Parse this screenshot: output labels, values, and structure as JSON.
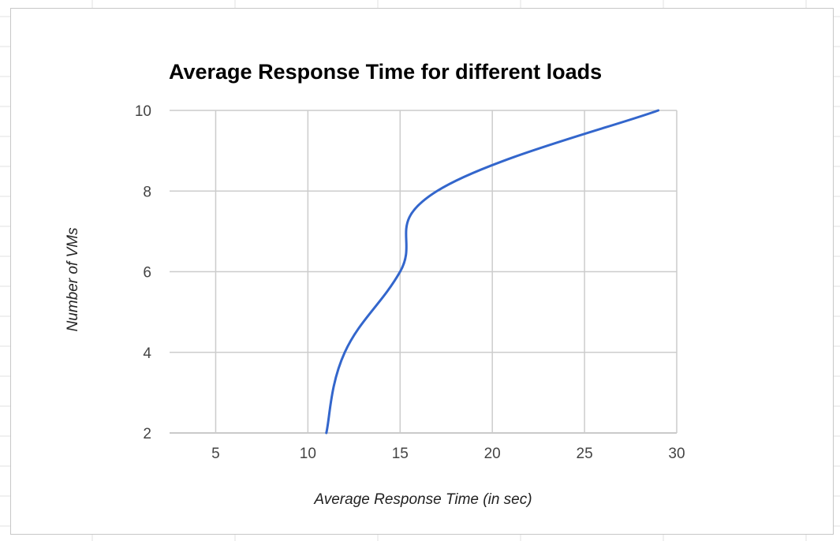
{
  "chart_data": {
    "type": "line",
    "title": "Average Response Time for different loads",
    "xlabel": "Average Response Time (in sec)",
    "ylabel": "Number of VMs",
    "xlim": [
      2.5,
      30
    ],
    "ylim": [
      2,
      10
    ],
    "xticks": [
      5,
      10,
      15,
      20,
      25,
      30
    ],
    "yticks": [
      2,
      4,
      6,
      8,
      10
    ],
    "grid": true,
    "smooth": true,
    "series": [
      {
        "name": "",
        "color": "#3366cc",
        "x": [
          11,
          12,
          15,
          17,
          29
        ],
        "y": [
          2,
          4,
          6,
          8,
          10
        ]
      }
    ]
  }
}
